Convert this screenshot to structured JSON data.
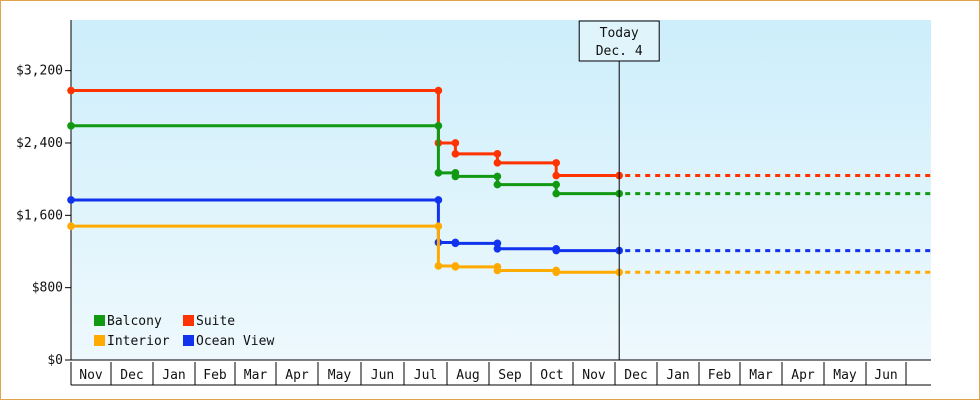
{
  "chart_data": {
    "type": "line",
    "step": true,
    "title": "",
    "xlabel": "",
    "ylabel": "",
    "ylim": [
      0,
      3760
    ],
    "yticks": [
      {
        "value": 0,
        "label": "$0"
      },
      {
        "value": 800,
        "label": "$800"
      },
      {
        "value": 1600,
        "label": "$1,600"
      },
      {
        "value": 2400,
        "label": "$2,400"
      },
      {
        "value": 3200,
        "label": "$3,200"
      }
    ],
    "months": [
      "Nov",
      "Dec",
      "Jan",
      "Feb",
      "Mar",
      "Apr",
      "May",
      "Jun",
      "Jul",
      "Aug",
      "Sep",
      "Oct",
      "Nov",
      "Dec",
      "Jan",
      "Feb",
      "Mar",
      "Apr",
      "May",
      "Jun"
    ],
    "xlim": [
      0,
      20
    ],
    "today": {
      "line1": "Today",
      "line2": "Dec. 4",
      "x": 13.1
    },
    "background": {
      "top": "#cdeefb",
      "bottom": "#eef9fd"
    },
    "series": [
      {
        "name": "Suite",
        "color": "#ff3300",
        "points": [
          [
            0,
            2980
          ],
          [
            8.8,
            2980
          ],
          [
            8.8,
            2400
          ],
          [
            9.2,
            2400
          ],
          [
            9.2,
            2280
          ],
          [
            10.2,
            2280
          ],
          [
            10.2,
            2180
          ],
          [
            11.6,
            2180
          ],
          [
            11.6,
            2040
          ],
          [
            13.1,
            2040
          ]
        ],
        "forecast": 2040
      },
      {
        "name": "Balcony",
        "color": "#119911",
        "points": [
          [
            0,
            2590
          ],
          [
            8.8,
            2590
          ],
          [
            8.8,
            2070
          ],
          [
            9.2,
            2070
          ],
          [
            9.2,
            2030
          ],
          [
            10.2,
            2030
          ],
          [
            10.2,
            1940
          ],
          [
            11.6,
            1940
          ],
          [
            11.6,
            1840
          ],
          [
            13.1,
            1840
          ]
        ],
        "forecast": 1840
      },
      {
        "name": "Ocean View",
        "color": "#1133ee",
        "points": [
          [
            0,
            1770
          ],
          [
            8.8,
            1770
          ],
          [
            8.8,
            1300
          ],
          [
            9.2,
            1300
          ],
          [
            9.2,
            1290
          ],
          [
            10.2,
            1290
          ],
          [
            10.2,
            1230
          ],
          [
            11.6,
            1230
          ],
          [
            11.6,
            1210
          ],
          [
            13.1,
            1210
          ]
        ],
        "forecast": 1210
      },
      {
        "name": "Interior",
        "color": "#ffaa00",
        "points": [
          [
            0,
            1480
          ],
          [
            8.8,
            1480
          ],
          [
            8.8,
            1040
          ],
          [
            9.2,
            1040
          ],
          [
            9.2,
            1030
          ],
          [
            10.2,
            1030
          ],
          [
            10.2,
            990
          ],
          [
            11.6,
            990
          ],
          [
            11.6,
            970
          ],
          [
            13.1,
            970
          ]
        ],
        "forecast": 970
      }
    ],
    "legend_position": "bottom-left",
    "legend": [
      {
        "name": "Balcony",
        "color": "#119911"
      },
      {
        "name": "Suite",
        "color": "#ff3300"
      },
      {
        "name": "Interior",
        "color": "#ffaa00"
      },
      {
        "name": "Ocean View",
        "color": "#1133ee"
      }
    ]
  }
}
